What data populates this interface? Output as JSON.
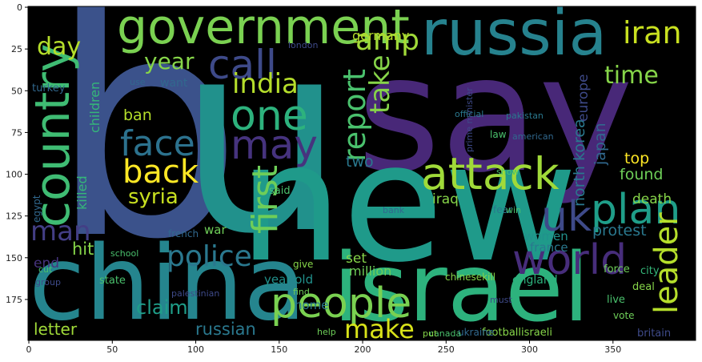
{
  "chart_data": {
    "type": "wordcloud",
    "xlim": [
      -0.5,
      399.5
    ],
    "ylim": [
      199.5,
      -0.5
    ],
    "xticks": [
      0,
      50,
      100,
      150,
      200,
      250,
      300,
      350
    ],
    "yticks": [
      0,
      25,
      50,
      75,
      100,
      125,
      150,
      175
    ],
    "background": "#000000",
    "words": [
      {
        "text": "b",
        "color": "#3b528b"
      },
      {
        "text": "u",
        "color": "#21918c"
      },
      {
        "text": "say",
        "color": "#482878"
      },
      {
        "text": "new",
        "color": "#1f9a8a"
      },
      {
        "text": "china",
        "color": "#25858e"
      },
      {
        "text": "israel",
        "color": "#2db27d"
      },
      {
        "text": "russia",
        "color": "#26828e"
      },
      {
        "text": "government",
        "color": "#7ad151"
      },
      {
        "text": "country",
        "color": "#3fbc73"
      },
      {
        "text": "call",
        "color": "#3e4a89"
      },
      {
        "text": "one",
        "color": "#2db27d"
      },
      {
        "text": "may",
        "color": "#46337e"
      },
      {
        "text": "face",
        "color": "#2c728e"
      },
      {
        "text": "back",
        "color": "#fde725"
      },
      {
        "text": "india",
        "color": "#b5de2b"
      },
      {
        "text": "amp",
        "color": "#a0da39"
      },
      {
        "text": "day",
        "color": "#b5de2b"
      },
      {
        "text": "year",
        "color": "#86d549"
      },
      {
        "text": "iran",
        "color": "#c8e020"
      },
      {
        "text": "time",
        "color": "#86d549"
      },
      {
        "text": "attack",
        "color": "#a0da39"
      },
      {
        "text": "plan",
        "color": "#1f9e89"
      },
      {
        "text": "uk",
        "color": "#3e4a89"
      },
      {
        "text": "world",
        "color": "#472d7b"
      },
      {
        "text": "leader",
        "color": "#b5de2b"
      },
      {
        "text": "people",
        "color": "#7ad151"
      },
      {
        "text": "make",
        "color": "#d8e219"
      },
      {
        "text": "police",
        "color": "#2a788e"
      },
      {
        "text": "first",
        "color": "#6ece58"
      },
      {
        "text": "report",
        "color": "#4ac16d"
      },
      {
        "text": "take",
        "color": "#86d549"
      },
      {
        "text": "man",
        "color": "#433e85"
      },
      {
        "text": "syria",
        "color": "#c8e020"
      },
      {
        "text": "russian",
        "color": "#2a788e"
      },
      {
        "text": "claim",
        "color": "#1f9e89"
      },
      {
        "text": "letter",
        "color": "#a0da39"
      },
      {
        "text": "germany",
        "color": "#b5de2b"
      },
      {
        "text": "two",
        "color": "#2a788e"
      },
      {
        "text": "north korea",
        "color": "#2a788e"
      },
      {
        "text": "japan",
        "color": "#31688e"
      },
      {
        "text": "europe",
        "color": "#3e4a89"
      },
      {
        "text": "protest",
        "color": "#2a788e"
      },
      {
        "text": "found",
        "color": "#6ece58"
      },
      {
        "text": "top",
        "color": "#fde725"
      },
      {
        "text": "death",
        "color": "#86d549"
      },
      {
        "text": "women",
        "color": "#21918c"
      },
      {
        "text": "france",
        "color": "#2a788e"
      },
      {
        "text": "england",
        "color": "#2db27d"
      },
      {
        "text": "hit",
        "color": "#86d549"
      },
      {
        "text": "end",
        "color": "#46337e"
      },
      {
        "text": "war",
        "color": "#6ece58"
      },
      {
        "text": "ban",
        "color": "#b5de2b"
      },
      {
        "text": "million",
        "color": "#6ece58"
      },
      {
        "text": "set",
        "color": "#86d549"
      },
      {
        "text": "year old",
        "color": "#21918c"
      },
      {
        "text": "home",
        "color": "#2a788e"
      },
      {
        "text": "iraq",
        "color": "#86d549"
      },
      {
        "text": "killed",
        "color": "#35b779"
      },
      {
        "text": "children",
        "color": "#35b779"
      },
      {
        "text": "footballisraeli",
        "color": "#86d549"
      },
      {
        "text": "ukraine",
        "color": "#31688e"
      },
      {
        "text": "chinesekill",
        "color": "#86d549"
      },
      {
        "text": "canada",
        "color": "#4ac16d"
      },
      {
        "text": "state",
        "color": "#4ac16d"
      },
      {
        "text": "want",
        "color": "#31688e"
      },
      {
        "text": "turkey",
        "color": "#31688e"
      },
      {
        "text": "egypt",
        "color": "#31688e"
      },
      {
        "text": "britain",
        "color": "#3e4a89"
      },
      {
        "text": "city",
        "color": "#35b779"
      },
      {
        "text": "deal",
        "color": "#86d549"
      },
      {
        "text": "force",
        "color": "#6ece58"
      },
      {
        "text": "live",
        "color": "#4ac16d"
      },
      {
        "text": "vote",
        "color": "#6ece58"
      },
      {
        "text": "fear",
        "color": "#2a788e"
      },
      {
        "text": "law",
        "color": "#4ac16d"
      },
      {
        "text": "show",
        "color": "#4ac16d"
      },
      {
        "text": "win",
        "color": "#4ac16d"
      },
      {
        "text": "bank",
        "color": "#31688e"
      },
      {
        "text": "said",
        "color": "#4ac16d"
      },
      {
        "text": "french",
        "color": "#31688e"
      },
      {
        "text": "school",
        "color": "#4ac16d"
      },
      {
        "text": "group",
        "color": "#3e4a89"
      },
      {
        "text": "cut",
        "color": "#4ac16d"
      },
      {
        "text": "find",
        "color": "#6ece58"
      },
      {
        "text": "give",
        "color": "#86d549"
      },
      {
        "text": "put",
        "color": "#86d549"
      },
      {
        "text": "palestinian",
        "color": "#3e4a89"
      },
      {
        "text": "official",
        "color": "#2a788e"
      },
      {
        "text": "pakistan",
        "color": "#2a788e"
      },
      {
        "text": "london",
        "color": "#3e4a89"
      },
      {
        "text": "american",
        "color": "#31688e"
      },
      {
        "text": "prime minister",
        "color": "#3e4a89"
      },
      {
        "text": "help",
        "color": "#6ece58"
      },
      {
        "text": "must",
        "color": "#3e4a89"
      },
      {
        "text": "use",
        "color": "#31688e"
      }
    ]
  }
}
